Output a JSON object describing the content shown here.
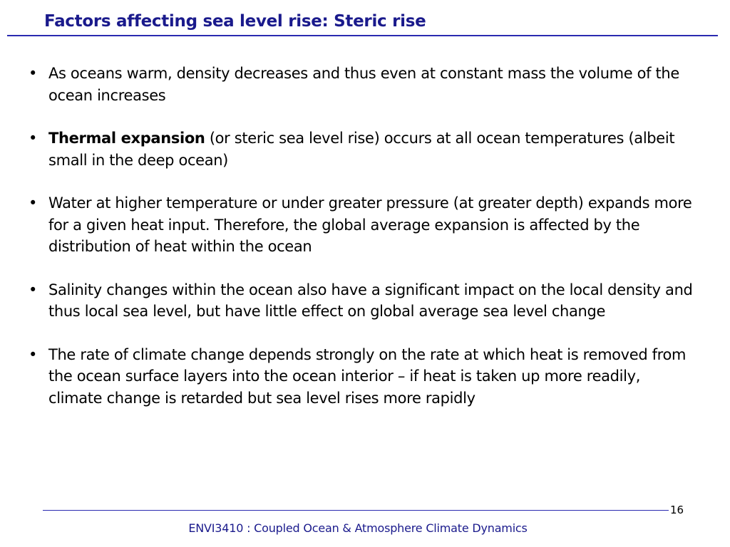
{
  "slide": {
    "title": "Factors affecting sea level rise: Steric rise",
    "bullet_glyph": "•",
    "bullets": [
      {
        "bold": "",
        "text": "As oceans warm, density decreases and thus even at constant mass the volume of the ocean increases"
      },
      {
        "bold": "Thermal expansion",
        "text": " (or steric sea level rise) occurs at all ocean temperatures (albeit small in the deep ocean)"
      },
      {
        "bold": "",
        "text": "Water at higher temperature or under greater pressure (at greater depth) expands more for a given heat input. Therefore, the global average expansion is affected by the distribution of heat within the ocean"
      },
      {
        "bold": "",
        "text": "Salinity changes within the ocean also have a significant impact on the local density and thus local sea level, but have little effect on global average sea level change"
      },
      {
        "bold": "",
        "text": "The rate of climate change depends strongly on the rate at which heat is removed from the ocean surface layers into the ocean interior – if heat is taken up more readily, climate change is retarded but sea level rises more rapidly"
      }
    ]
  },
  "footer": {
    "page_number": "16",
    "course": "ENVI3410 : Coupled Ocean & Atmosphere Climate Dynamics"
  },
  "colors": {
    "title": "#1a1a8c",
    "rule": "#2a2ab0",
    "body_text": "#000000"
  }
}
